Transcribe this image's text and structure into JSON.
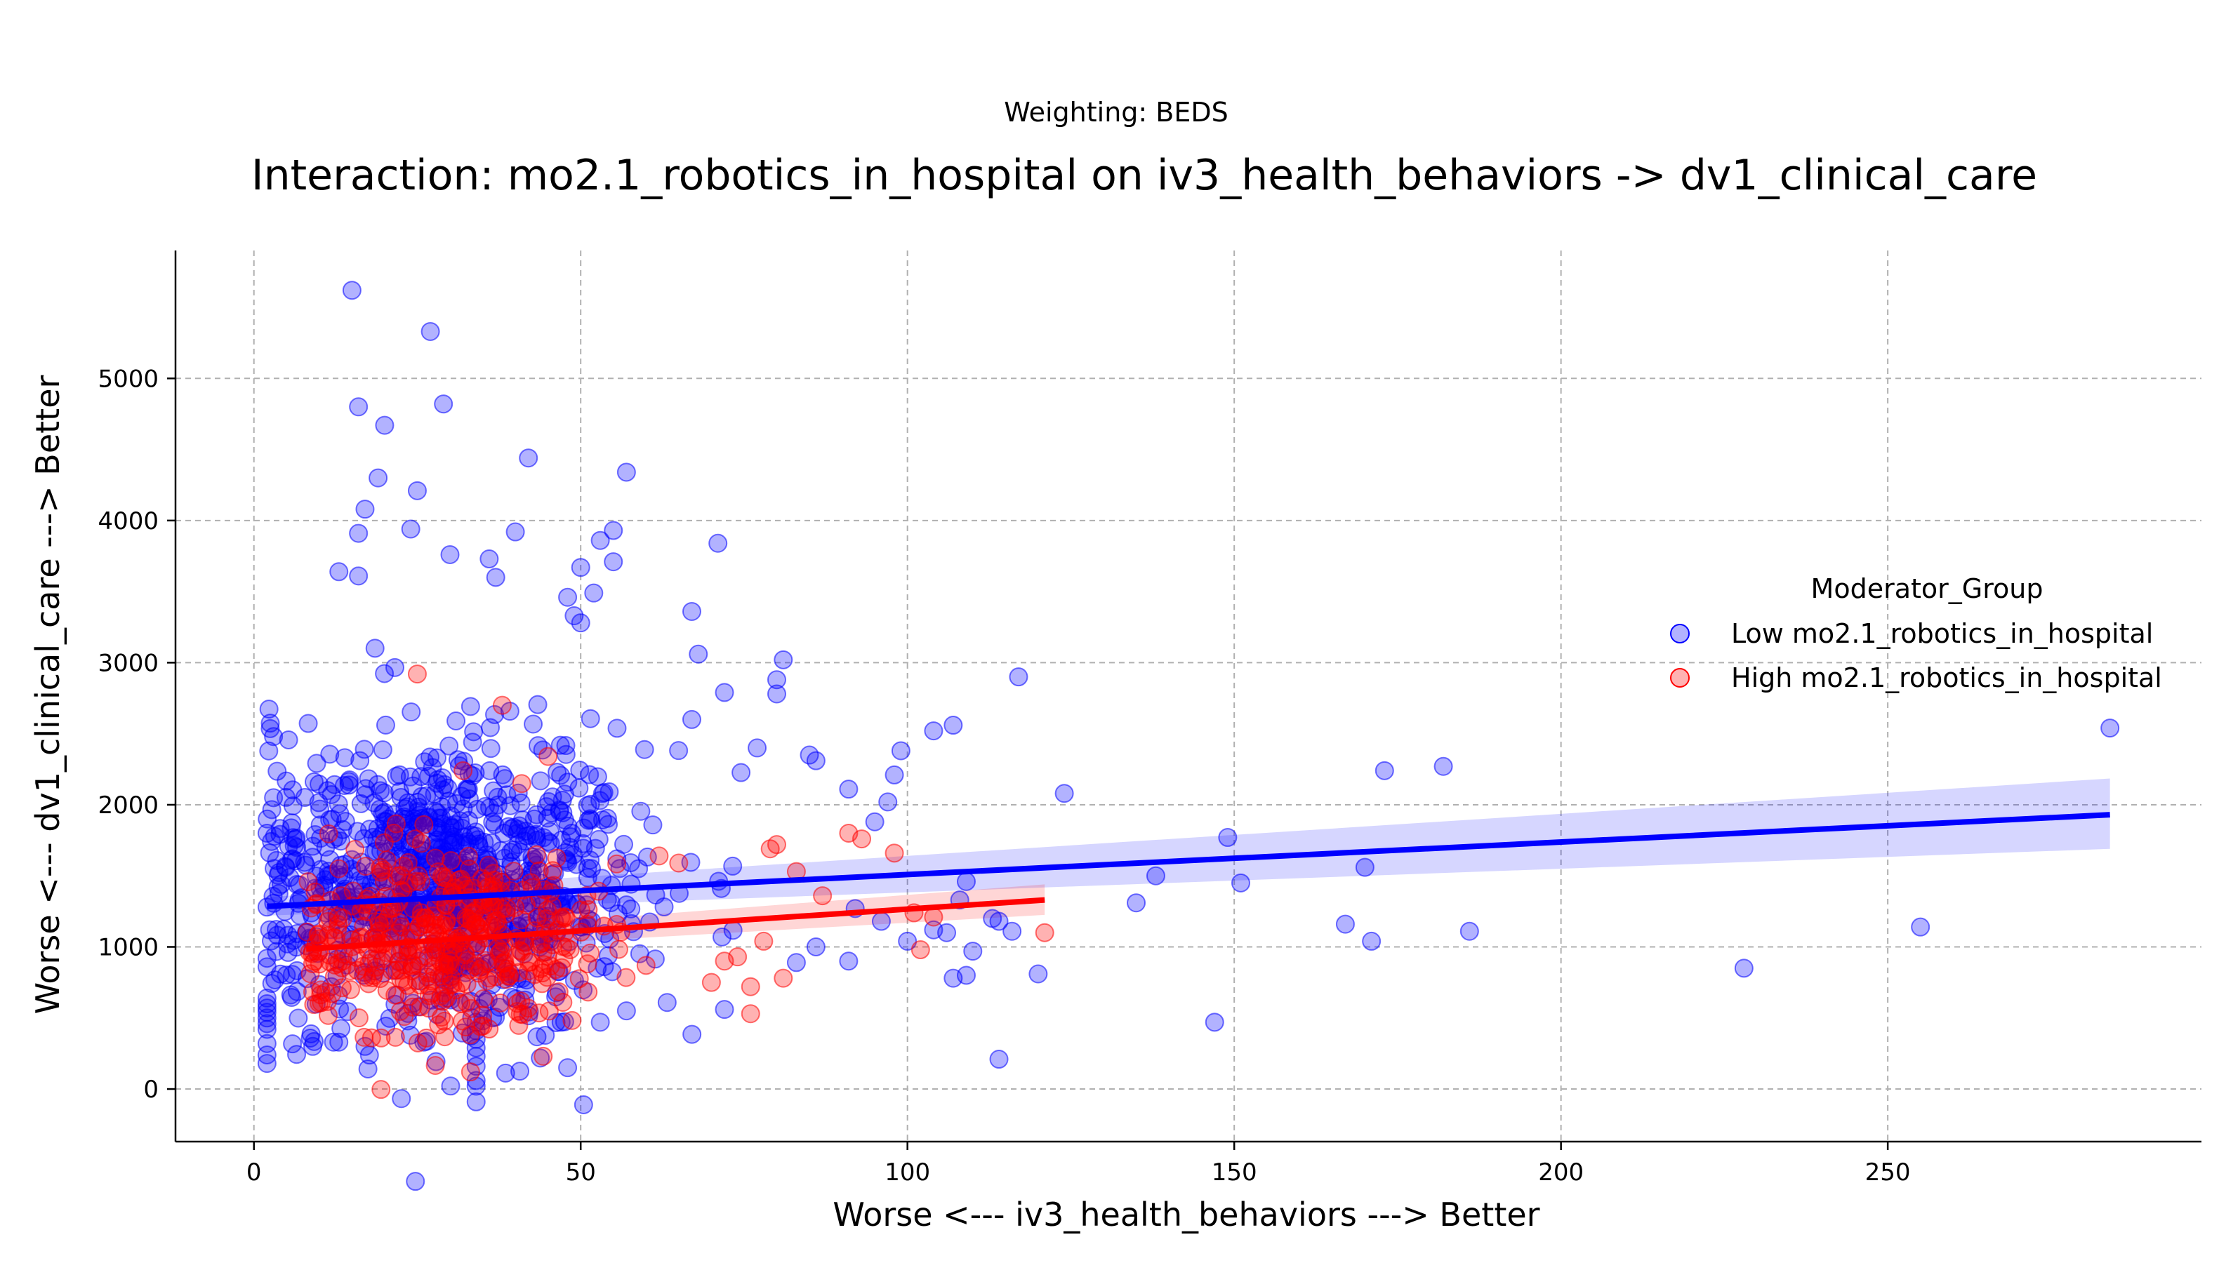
{
  "chart_data": {
    "type": "scatter",
    "suptitle": "Weighting: BEDS",
    "title": "Interaction: mo2.1_robotics_in_hospital on iv3_health_behaviors -> dv1_clinical_care",
    "xlabel": "Worse <--- iv3_health_behaviors ---> Better",
    "ylabel": "Worse <--- dv1_clinical_care ---> Better",
    "xlim": [
      -12,
      298
    ],
    "ylim": [
      -370,
      5900
    ],
    "xticks": [
      0,
      50,
      100,
      150,
      200,
      250
    ],
    "yticks": [
      0,
      1000,
      2000,
      3000,
      4000,
      5000
    ],
    "grid": true,
    "legend": {
      "title": "Moderator_Group",
      "placement": "right"
    },
    "series": [
      {
        "name": "Low mo2.1_robotics_in_hospital",
        "color": "#0000ff",
        "cluster": {
          "count": 900,
          "x_center": 30,
          "x_spread": 15,
          "x_min": 2,
          "x_max": 75,
          "y_center": 1450,
          "y_spread": 520
        },
        "points": [
          {
            "x": 15,
            "y": 5620
          },
          {
            "x": 27,
            "y": 5330
          },
          {
            "x": 29,
            "y": 4820
          },
          {
            "x": 16,
            "y": 4800
          },
          {
            "x": 20,
            "y": 4670
          },
          {
            "x": 42,
            "y": 4440
          },
          {
            "x": 57,
            "y": 4340
          },
          {
            "x": 19,
            "y": 4300
          },
          {
            "x": 25,
            "y": 4210
          },
          {
            "x": 17,
            "y": 4080
          },
          {
            "x": 16,
            "y": 3910
          },
          {
            "x": 24,
            "y": 3940
          },
          {
            "x": 40,
            "y": 3920
          },
          {
            "x": 55,
            "y": 3930
          },
          {
            "x": 53,
            "y": 3860
          },
          {
            "x": 71,
            "y": 3840
          },
          {
            "x": 30,
            "y": 3760
          },
          {
            "x": 36,
            "y": 3730
          },
          {
            "x": 55,
            "y": 3710
          },
          {
            "x": 50,
            "y": 3670
          },
          {
            "x": 13,
            "y": 3640
          },
          {
            "x": 16,
            "y": 3610
          },
          {
            "x": 37,
            "y": 3600
          },
          {
            "x": 52,
            "y": 3490
          },
          {
            "x": 48,
            "y": 3460
          },
          {
            "x": 67,
            "y": 3360
          },
          {
            "x": 49,
            "y": 3330
          },
          {
            "x": 50,
            "y": 3280
          },
          {
            "x": 68,
            "y": 3060
          },
          {
            "x": 81,
            "y": 3020
          },
          {
            "x": 117,
            "y": 2900
          },
          {
            "x": 80,
            "y": 2880
          },
          {
            "x": 80,
            "y": 2780
          },
          {
            "x": 72,
            "y": 2790
          },
          {
            "x": 67,
            "y": 2600
          },
          {
            "x": 104,
            "y": 2520
          },
          {
            "x": 107,
            "y": 2560
          },
          {
            "x": 99,
            "y": 2380
          },
          {
            "x": 77,
            "y": 2400
          },
          {
            "x": 85,
            "y": 2350
          },
          {
            "x": 86,
            "y": 2310
          },
          {
            "x": 98,
            "y": 2210
          },
          {
            "x": 91,
            "y": 2110
          },
          {
            "x": 124,
            "y": 2080
          },
          {
            "x": 97,
            "y": 2020
          },
          {
            "x": 95,
            "y": 1880
          },
          {
            "x": 284,
            "y": 2540
          },
          {
            "x": 182,
            "y": 2270
          },
          {
            "x": 173,
            "y": 2240
          },
          {
            "x": 149,
            "y": 1770
          },
          {
            "x": 170,
            "y": 1560
          },
          {
            "x": 138,
            "y": 1500
          },
          {
            "x": 151,
            "y": 1450
          },
          {
            "x": 135,
            "y": 1310
          },
          {
            "x": 109,
            "y": 1460
          },
          {
            "x": 108,
            "y": 1330
          },
          {
            "x": 113,
            "y": 1200
          },
          {
            "x": 114,
            "y": 1180
          },
          {
            "x": 116,
            "y": 1110
          },
          {
            "x": 106,
            "y": 1100
          },
          {
            "x": 104,
            "y": 1120
          },
          {
            "x": 100,
            "y": 1040
          },
          {
            "x": 110,
            "y": 970
          },
          {
            "x": 107,
            "y": 780
          },
          {
            "x": 109,
            "y": 800
          },
          {
            "x": 120,
            "y": 810
          },
          {
            "x": 167,
            "y": 1160
          },
          {
            "x": 171,
            "y": 1040
          },
          {
            "x": 186,
            "y": 1110
          },
          {
            "x": 228,
            "y": 850
          },
          {
            "x": 255,
            "y": 1140
          },
          {
            "x": 147,
            "y": 470
          },
          {
            "x": 114,
            "y": 210
          },
          {
            "x": 91,
            "y": 900
          },
          {
            "x": 83,
            "y": 890
          },
          {
            "x": 86,
            "y": 1000
          },
          {
            "x": 96,
            "y": 1180
          },
          {
            "x": 92,
            "y": 1270
          },
          {
            "x": 3,
            "y": 2480
          },
          {
            "x": 3,
            "y": 2050
          },
          {
            "x": 2,
            "y": 1800
          },
          {
            "x": 2,
            "y": 1280
          },
          {
            "x": 2,
            "y": 920
          },
          {
            "x": 2,
            "y": 860
          },
          {
            "x": 2,
            "y": 640
          },
          {
            "x": 2,
            "y": 600
          },
          {
            "x": 2,
            "y": 570
          },
          {
            "x": 2,
            "y": 540
          },
          {
            "x": 2,
            "y": 500
          },
          {
            "x": 2,
            "y": 460
          },
          {
            "x": 2,
            "y": 420
          },
          {
            "x": 2,
            "y": 320
          },
          {
            "x": 2,
            "y": 240
          },
          {
            "x": 2,
            "y": 180
          },
          {
            "x": 34,
            "y": -90
          },
          {
            "x": 34,
            "y": 20
          },
          {
            "x": 34,
            "y": 60
          },
          {
            "x": 34,
            "y": 160
          },
          {
            "x": 34,
            "y": 230
          },
          {
            "x": 34,
            "y": 290
          },
          {
            "x": 34,
            "y": 350
          },
          {
            "x": 34,
            "y": 410
          },
          {
            "x": 34,
            "y": 470
          },
          {
            "x": 48,
            "y": 150
          },
          {
            "x": 47,
            "y": 470
          },
          {
            "x": 53,
            "y": 470
          },
          {
            "x": 57,
            "y": 550
          },
          {
            "x": 72,
            "y": 560
          },
          {
            "x": 9,
            "y": 300
          },
          {
            "x": 13,
            "y": 330
          },
          {
            "x": 17,
            "y": 300
          },
          {
            "x": 26,
            "y": 330
          }
        ]
      },
      {
        "name": "High mo2.1_robotics_in_hospital",
        "color": "#ff0000",
        "cluster": {
          "count": 420,
          "x_center": 30,
          "x_spread": 13,
          "x_min": 8,
          "x_max": 72,
          "y_center": 1060,
          "y_spread": 340
        },
        "points": [
          {
            "x": 25,
            "y": 2920
          },
          {
            "x": 38,
            "y": 2700
          },
          {
            "x": 45,
            "y": 2340
          },
          {
            "x": 32,
            "y": 2240
          },
          {
            "x": 26,
            "y": 1860
          },
          {
            "x": 91,
            "y": 1800
          },
          {
            "x": 93,
            "y": 1760
          },
          {
            "x": 98,
            "y": 1660
          },
          {
            "x": 80,
            "y": 1720
          },
          {
            "x": 83,
            "y": 1530
          },
          {
            "x": 79,
            "y": 1690
          },
          {
            "x": 87,
            "y": 1360
          },
          {
            "x": 101,
            "y": 1240
          },
          {
            "x": 104,
            "y": 1210
          },
          {
            "x": 121,
            "y": 1100
          },
          {
            "x": 102,
            "y": 980
          },
          {
            "x": 78,
            "y": 1040
          },
          {
            "x": 81,
            "y": 780
          },
          {
            "x": 76,
            "y": 720
          },
          {
            "x": 76,
            "y": 530
          },
          {
            "x": 72,
            "y": 900
          },
          {
            "x": 74,
            "y": 930
          },
          {
            "x": 70,
            "y": 750
          },
          {
            "x": 60,
            "y": 870
          },
          {
            "x": 62,
            "y": 1640
          },
          {
            "x": 65,
            "y": 1590
          },
          {
            "x": 18,
            "y": 360
          },
          {
            "x": 23,
            "y": 510
          },
          {
            "x": 35,
            "y": 520
          },
          {
            "x": 13,
            "y": 1550
          }
        ]
      }
    ],
    "regression": [
      {
        "series": "Low mo2.1_robotics_in_hospital",
        "color": "#0000ff",
        "x": [
          2,
          284
        ],
        "y": [
          1285,
          1930
        ],
        "ci_low": [
          1220,
          1690
        ],
        "ci_high": [
          1350,
          2185
        ]
      },
      {
        "series": "High mo2.1_robotics_in_hospital",
        "color": "#ff0000",
        "x": [
          8,
          121
        ],
        "y": [
          985,
          1330
        ],
        "ci_low": [
          930,
          1225
        ],
        "ci_high": [
          1040,
          1440
        ]
      }
    ]
  }
}
